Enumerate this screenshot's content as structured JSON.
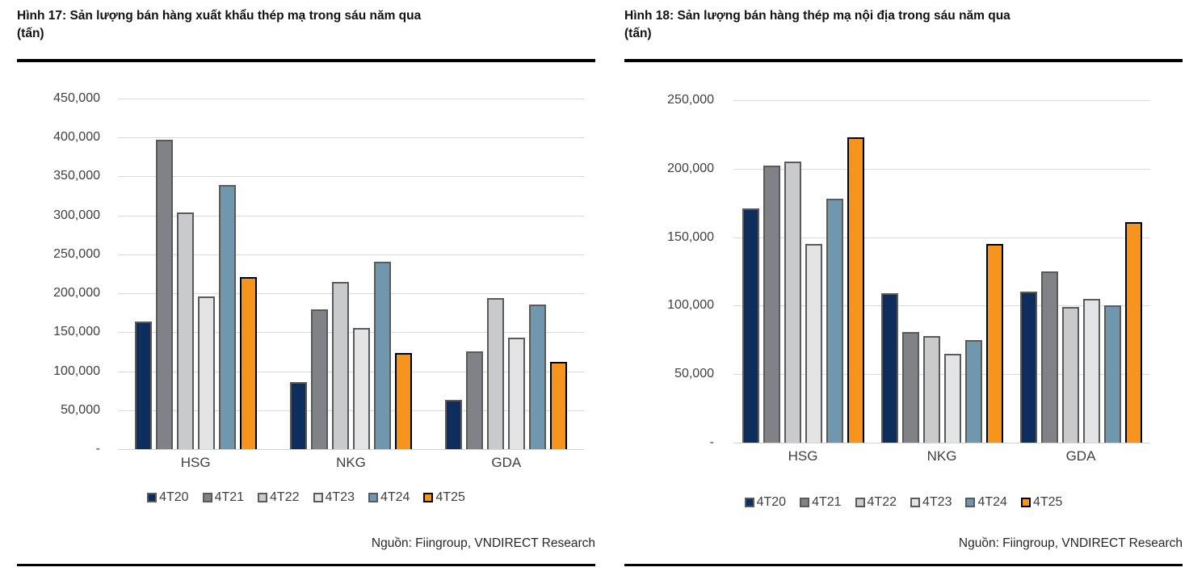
{
  "chart_data": [
    {
      "type": "bar",
      "figure_label": "Hình 17",
      "title": "Hình 17: Sản lượng bán hàng xuất khẩu thép mạ trong sáu năm qua (tấn)",
      "title_lines": [
        "Hình 17: Sản lượng bán hàng xuất khẩu thép mạ trong sáu năm qua",
        "(tấn)"
      ],
      "unit": "tấn",
      "categories": [
        "HSG",
        "NKG",
        "GDA"
      ],
      "series": [
        {
          "name": "4T20",
          "color": "#0e2c5c",
          "border": "#595a5c",
          "values": [
            164000,
            86000,
            63000
          ]
        },
        {
          "name": "4T21",
          "color": "#808285",
          "border": "#595a5c",
          "values": [
            397000,
            179000,
            125000
          ]
        },
        {
          "name": "4T22",
          "color": "#c9cacb",
          "border": "#595a5c",
          "values": [
            304000,
            215000,
            194000
          ]
        },
        {
          "name": "4T23",
          "color": "#e3e4e5",
          "border": "#595a5c",
          "values": [
            196000,
            156000,
            143000
          ]
        },
        {
          "name": "4T24",
          "color": "#6f97ad",
          "border": "#595a5c",
          "values": [
            339000,
            241000,
            186000
          ]
        },
        {
          "name": "4T25",
          "color": "#f6941e",
          "border": "#000000",
          "values": [
            221000,
            123000,
            112000
          ]
        }
      ],
      "ylim": [
        0,
        450000
      ],
      "ytick_step": 50000,
      "yticks": [
        "450,000",
        "400,000",
        "350,000",
        "300,000",
        "250,000",
        "200,000",
        "150,000",
        "100,000",
        "50,000",
        "-"
      ],
      "grid": true,
      "legend_position": "bottom",
      "legend": [
        "4T20",
        "4T21",
        "4T22",
        "4T23",
        "4T24",
        "4T25"
      ],
      "source": "Nguồn: Fiingroup, VNDIRECT Research"
    },
    {
      "type": "bar",
      "figure_label": "Hình 18",
      "title": "Hình 18: Sản lượng bán hàng thép mạ nội địa trong sáu năm qua (tấn)",
      "title_lines": [
        "Hình 18: Sản lượng bán hàng thép mạ nội địa trong sáu năm qua",
        "(tấn)"
      ],
      "unit": "tấn",
      "categories": [
        "HSG",
        "NKG",
        "GDA"
      ],
      "series": [
        {
          "name": "4T20",
          "color": "#0e2c5c",
          "border": "#595a5c",
          "values": [
            171000,
            109000,
            110000
          ]
        },
        {
          "name": "4T21",
          "color": "#808285",
          "border": "#595a5c",
          "values": [
            202000,
            81000,
            125000
          ]
        },
        {
          "name": "4T22",
          "color": "#c9cacb",
          "border": "#595a5c",
          "values": [
            205000,
            78000,
            99000
          ]
        },
        {
          "name": "4T23",
          "color": "#e3e4e5",
          "border": "#595a5c",
          "values": [
            145000,
            65000,
            105000
          ]
        },
        {
          "name": "4T24",
          "color": "#6f97ad",
          "border": "#595a5c",
          "values": [
            178000,
            75000,
            100000
          ]
        },
        {
          "name": "4T25",
          "color": "#f6941e",
          "border": "#000000",
          "values": [
            223000,
            145000,
            161000
          ]
        }
      ],
      "ylim": [
        0,
        250000
      ],
      "ytick_step": 50000,
      "yticks": [
        "250,000",
        "200,000",
        "150,000",
        "100,000",
        "50,000",
        "-"
      ],
      "grid": true,
      "legend_position": "bottom",
      "legend": [
        "4T20",
        "4T21",
        "4T22",
        "4T23",
        "4T24",
        "4T25"
      ],
      "source": "Nguồn: Fiingroup, VNDIRECT Research"
    }
  ]
}
